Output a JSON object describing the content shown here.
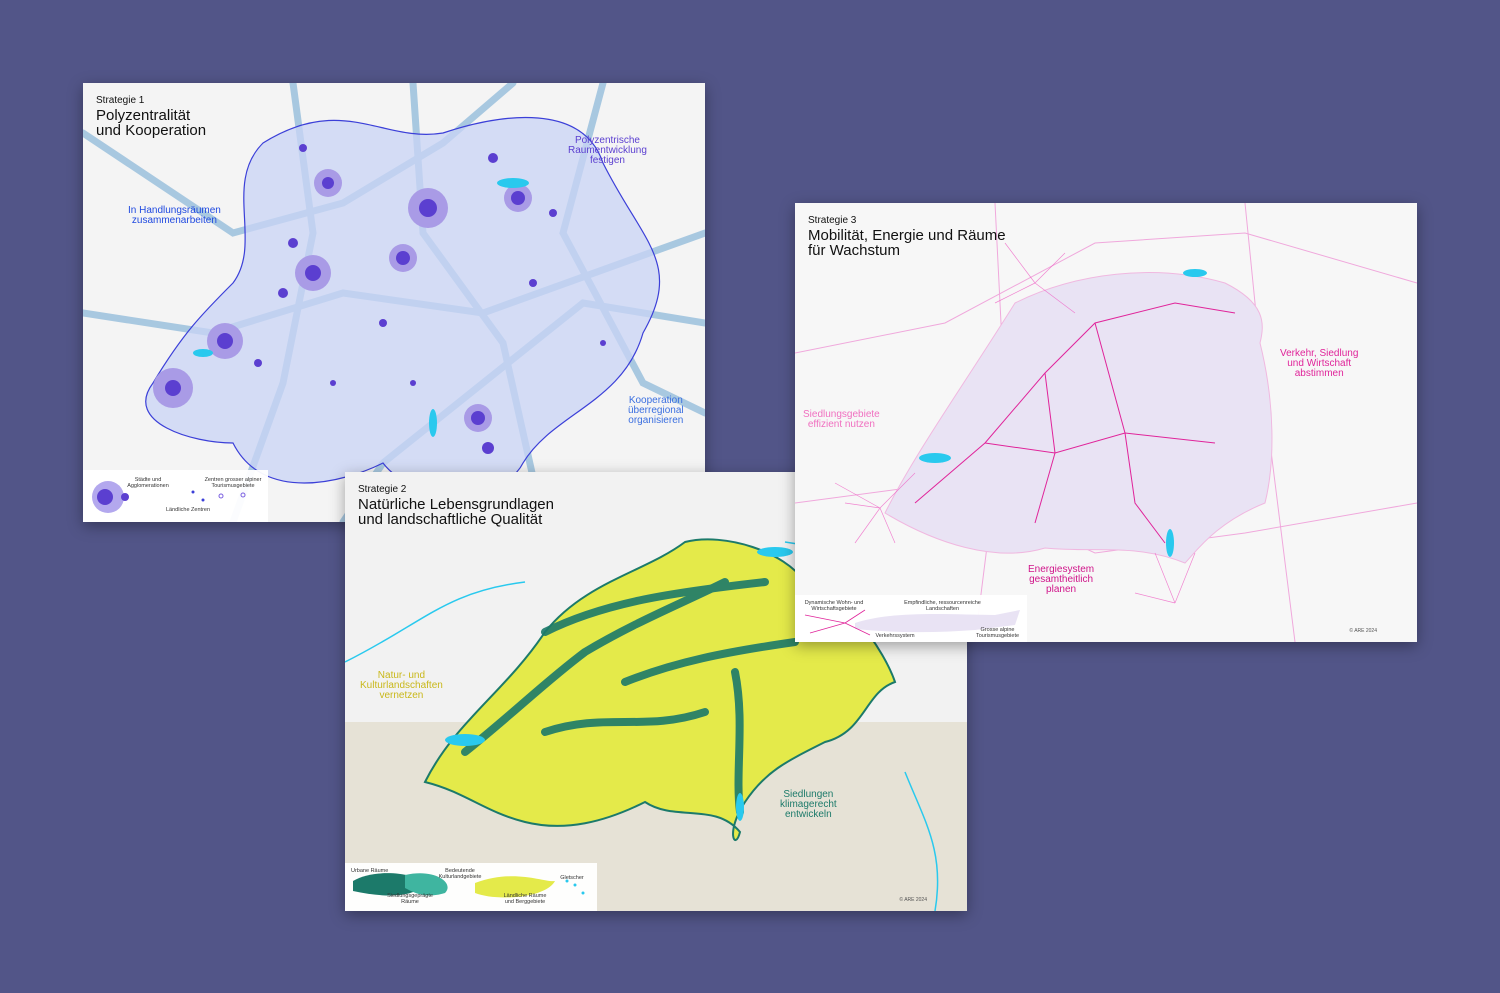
{
  "cards": [
    {
      "kicker": "Strategie 1",
      "title": "Polyzentralität\nund Kooperation",
      "accent": "#3b3fd8",
      "notes": [
        "In Handlungsräumen\nzusammenarbeiten",
        "Polyzentrische\nRaumentwicklung\nfestigen",
        "Kooperation\nüberregional\norganisieren"
      ],
      "legend": [
        "Städte und\nAgglomerationen",
        "Ländliche Zentren",
        "Zentren grosser alpiner\nTourismusgebiete"
      ]
    },
    {
      "kicker": "Strategie 2",
      "title": "Natürliche Lebensgrundlagen\nund landschaftliche Qualität",
      "accent": "#c9c21a",
      "accent2": "#1c7a6a",
      "notes": [
        "Natur- und\nKulturlandschaften\nvernetzen",
        "Siedlungen\nklimagerecht\nentwickeln"
      ],
      "legend": [
        "Urbane Räume",
        "Siedlungsgeprägte\nRäume",
        "Bedeutende\nKulturlandgebiete",
        "Ländliche Räume\nund Berggebiete",
        "Gletscher"
      ],
      "copyright": "© ARE 2024"
    },
    {
      "kicker": "Strategie 3",
      "title": "Mobilität, Energie und Räume\nfür Wachstum",
      "accent": "#e0249a",
      "notes": [
        "Siedlungsgebiete\neffizient nutzen",
        "Verkehr, Siedlung\nund Wirtschaft\nabstimmen",
        "Energiesystem\ngesamtheitlich\nplanen"
      ],
      "legend": [
        "Dynamische Wohn- und\nWirtschaftsgebiete",
        "Empfindliche, ressourcenreiche\nLandschaften",
        "Verkehrssystem",
        "Grosse alpine\nTourismusgebiete"
      ],
      "copyright": "© ARE 2024"
    }
  ]
}
